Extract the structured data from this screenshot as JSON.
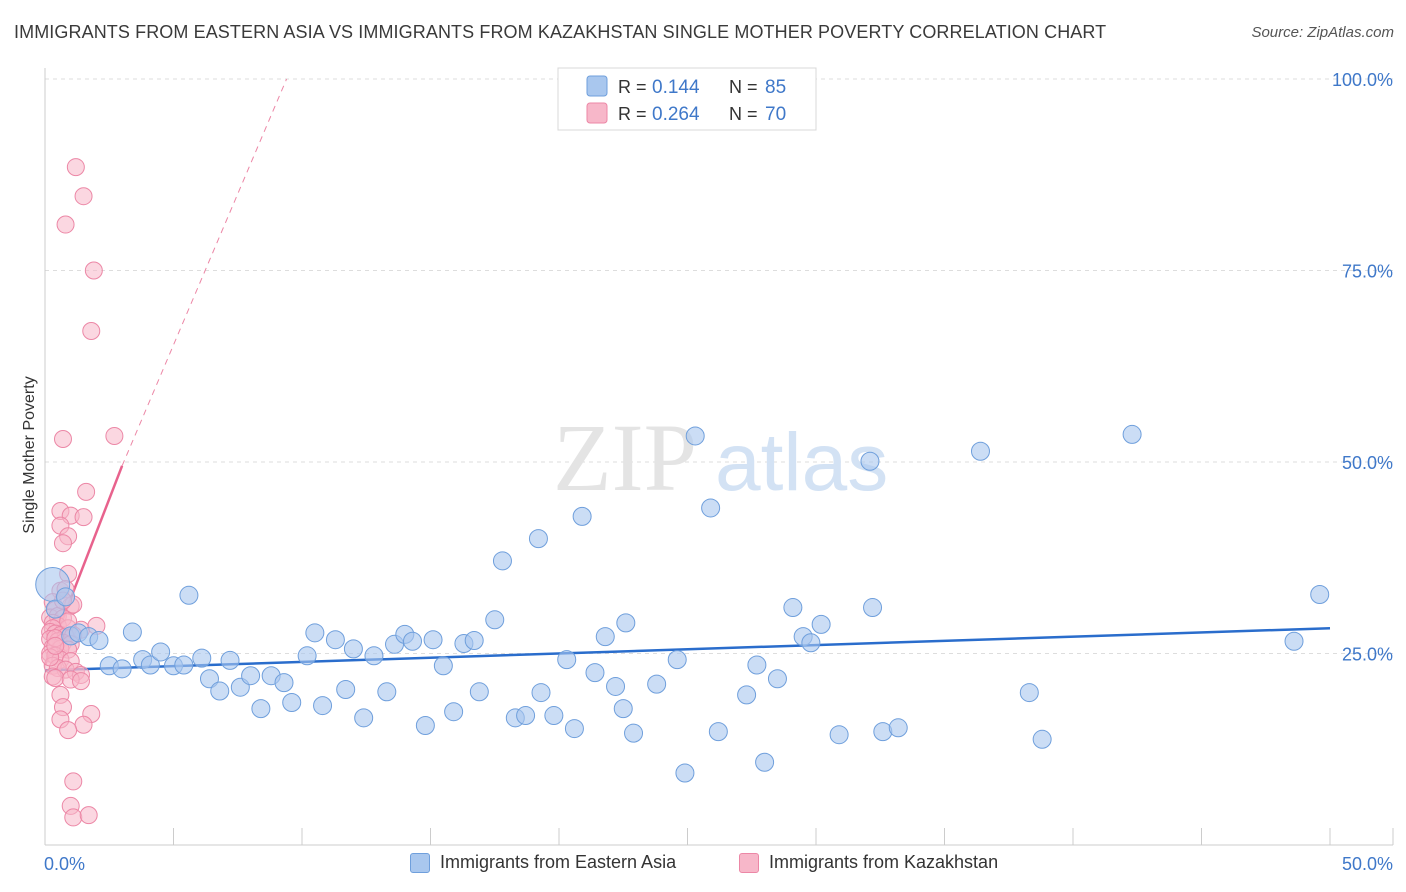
{
  "header": {
    "title": "IMMIGRANTS FROM EASTERN ASIA VS IMMIGRANTS FROM KAZAKHSTAN SINGLE MOTHER POVERTY CORRELATION CHART",
    "source": "Source: ZipAtlas.com"
  },
  "watermark": {
    "left": "ZIP",
    "right": "atlas"
  },
  "legend": {
    "rows": [
      {
        "r_label": "R = ",
        "r_value": "0.144",
        "n_label": "N = ",
        "n_value": "85"
      },
      {
        "r_label": "R = ",
        "r_value": "0.264",
        "n_label": "N = ",
        "n_value": "70"
      }
    ]
  },
  "bottom_legend": {
    "items": [
      {
        "label": "Immigrants from Eastern Asia"
      },
      {
        "label": "Immigrants from Kazakhstan"
      }
    ]
  },
  "colors": {
    "blue_fill": "#a9c7ee",
    "blue_stroke": "#6f9fdc",
    "blue_line": "#2a6dcc",
    "pink_fill": "#f7b7c9",
    "pink_stroke": "#ec87a6",
    "pink_line": "#e8628d",
    "axis_label": "#3f78c9",
    "grid": "#dddddd"
  },
  "chart_data": {
    "type": "scatter",
    "title": "IMMIGRANTS FROM EASTERN ASIA VS IMMIGRANTS FROM KAZAKHSTAN SINGLE MOTHER POVERTY CORRELATION CHART",
    "xlabel": "",
    "ylabel": "Single Mother Poverty",
    "xlim": [
      0,
      50
    ],
    "ylim": [
      0,
      100
    ],
    "x_tick_labels": [
      "0.0%",
      "50.0%"
    ],
    "y_tick_labels": [
      "25.0%",
      "50.0%",
      "75.0%",
      "100.0%"
    ],
    "y_ticks": [
      25,
      50,
      75,
      100
    ],
    "grid": "horizontal dashed",
    "legend_position": "top-center",
    "series": [
      {
        "name": "Immigrants from Eastern Asia",
        "color": "#6f9fdc",
        "r": 0.144,
        "n": 85,
        "trend": {
          "x": [
            0,
            50
          ],
          "y": [
            22.8,
            28.3
          ],
          "style": "solid"
        },
        "points": [
          [
            0.3,
            34.0
          ],
          [
            0.4,
            30.8
          ],
          [
            0.8,
            32.4
          ],
          [
            1.0,
            27.3
          ],
          [
            1.3,
            27.7
          ],
          [
            1.7,
            27.2
          ],
          [
            2.1,
            26.7
          ],
          [
            2.5,
            23.4
          ],
          [
            3.0,
            23.0
          ],
          [
            3.4,
            27.8
          ],
          [
            3.8,
            24.2
          ],
          [
            4.1,
            23.5
          ],
          [
            4.5,
            25.2
          ],
          [
            5.0,
            23.4
          ],
          [
            5.4,
            23.5
          ],
          [
            5.6,
            32.6
          ],
          [
            6.1,
            24.4
          ],
          [
            6.4,
            21.7
          ],
          [
            6.8,
            20.1
          ],
          [
            7.2,
            24.1
          ],
          [
            7.6,
            20.6
          ],
          [
            8.0,
            22.1
          ],
          [
            8.4,
            17.8
          ],
          [
            8.8,
            22.1
          ],
          [
            9.3,
            21.2
          ],
          [
            9.6,
            18.6
          ],
          [
            10.2,
            24.7
          ],
          [
            10.5,
            27.7
          ],
          [
            10.8,
            18.2
          ],
          [
            11.3,
            26.8
          ],
          [
            11.7,
            20.3
          ],
          [
            12.0,
            25.6
          ],
          [
            12.4,
            16.6
          ],
          [
            12.8,
            24.7
          ],
          [
            13.3,
            20.0
          ],
          [
            13.6,
            26.2
          ],
          [
            14.0,
            27.5
          ],
          [
            14.3,
            26.6
          ],
          [
            14.8,
            15.6
          ],
          [
            15.1,
            26.8
          ],
          [
            15.5,
            23.4
          ],
          [
            15.9,
            17.4
          ],
          [
            16.3,
            26.3
          ],
          [
            16.7,
            26.7
          ],
          [
            16.9,
            20.0
          ],
          [
            17.5,
            29.4
          ],
          [
            17.8,
            37.1
          ],
          [
            18.3,
            16.6
          ],
          [
            18.7,
            16.9
          ],
          [
            19.3,
            19.9
          ],
          [
            19.2,
            40.0
          ],
          [
            19.8,
            16.9
          ],
          [
            20.3,
            24.2
          ],
          [
            20.6,
            15.2
          ],
          [
            20.9,
            42.9
          ],
          [
            21.4,
            22.5
          ],
          [
            21.8,
            27.2
          ],
          [
            22.2,
            20.7
          ],
          [
            22.6,
            29.0
          ],
          [
            22.5,
            17.8
          ],
          [
            22.9,
            14.6
          ],
          [
            23.8,
            21.0
          ],
          [
            24.6,
            24.2
          ],
          [
            24.9,
            9.4
          ],
          [
            25.3,
            53.4
          ],
          [
            25.9,
            44.0
          ],
          [
            26.2,
            14.8
          ],
          [
            27.3,
            19.6
          ],
          [
            27.7,
            23.5
          ],
          [
            28.0,
            10.8
          ],
          [
            28.5,
            21.7
          ],
          [
            29.1,
            31.0
          ],
          [
            29.5,
            27.2
          ],
          [
            29.8,
            26.4
          ],
          [
            30.2,
            28.8
          ],
          [
            30.9,
            14.4
          ],
          [
            32.1,
            50.1
          ],
          [
            32.2,
            31.0
          ],
          [
            32.6,
            14.8
          ],
          [
            33.2,
            15.3
          ],
          [
            36.4,
            51.4
          ],
          [
            38.3,
            19.9
          ],
          [
            38.8,
            13.8
          ],
          [
            42.3,
            53.6
          ],
          [
            49.6,
            32.7
          ],
          [
            48.6,
            26.6
          ]
        ],
        "sizes_note": "one larger bubble at x=0.3"
      },
      {
        "name": "Immigrants from Kazakhstan",
        "color": "#ec87a6",
        "r": 0.264,
        "n": 70,
        "trend": {
          "x": [
            0,
            3.0
          ],
          "y": [
            23.5,
            49.5
          ],
          "style": "solid",
          "extended": {
            "x": [
              3.0,
              9.4
            ],
            "y": [
              49.5,
              100.0
            ],
            "style": "dashed"
          }
        },
        "points": [
          [
            1.2,
            88.5
          ],
          [
            1.5,
            84.7
          ],
          [
            0.8,
            81.0
          ],
          [
            1.9,
            75.0
          ],
          [
            1.8,
            67.1
          ],
          [
            2.7,
            53.4
          ],
          [
            0.7,
            53.0
          ],
          [
            1.6,
            46.1
          ],
          [
            0.6,
            43.6
          ],
          [
            1.0,
            43.0
          ],
          [
            1.5,
            42.8
          ],
          [
            0.6,
            41.7
          ],
          [
            0.9,
            40.3
          ],
          [
            0.7,
            39.4
          ],
          [
            0.9,
            35.4
          ],
          [
            0.6,
            33.2
          ],
          [
            0.8,
            33.4
          ],
          [
            0.3,
            31.7
          ],
          [
            1.0,
            31.2
          ],
          [
            1.1,
            31.4
          ],
          [
            0.4,
            30.7
          ],
          [
            0.2,
            29.7
          ],
          [
            0.5,
            29.9
          ],
          [
            0.7,
            29.6
          ],
          [
            0.3,
            29.0
          ],
          [
            0.5,
            28.6
          ],
          [
            0.3,
            28.3
          ],
          [
            0.9,
            28.3
          ],
          [
            1.4,
            28.1
          ],
          [
            2.0,
            28.6
          ],
          [
            0.2,
            27.8
          ],
          [
            0.4,
            27.6
          ],
          [
            0.6,
            27.4
          ],
          [
            0.8,
            27.2
          ],
          [
            1.1,
            27.4
          ],
          [
            0.2,
            26.9
          ],
          [
            0.5,
            26.6
          ],
          [
            0.7,
            26.4
          ],
          [
            1.0,
            26.2
          ],
          [
            0.3,
            25.8
          ],
          [
            0.6,
            25.6
          ],
          [
            0.9,
            25.5
          ],
          [
            0.2,
            25.0
          ],
          [
            0.4,
            24.7
          ],
          [
            0.6,
            24.2
          ],
          [
            1.0,
            24.0
          ],
          [
            0.3,
            23.4
          ],
          [
            0.5,
            23.1
          ],
          [
            0.8,
            22.9
          ],
          [
            1.2,
            22.6
          ],
          [
            1.4,
            22.2
          ],
          [
            0.3,
            22.0
          ],
          [
            0.4,
            21.8
          ],
          [
            1.0,
            21.6
          ],
          [
            1.4,
            21.4
          ],
          [
            0.6,
            19.6
          ],
          [
            0.7,
            18.0
          ],
          [
            1.8,
            17.1
          ],
          [
            0.6,
            16.4
          ],
          [
            1.5,
            15.7
          ],
          [
            0.9,
            15.0
          ],
          [
            1.1,
            8.3
          ],
          [
            1.0,
            5.1
          ],
          [
            1.1,
            3.6
          ],
          [
            1.7,
            3.9
          ],
          [
            0.4,
            27.0
          ],
          [
            0.2,
            24.5
          ],
          [
            0.7,
            31.9
          ],
          [
            0.9,
            29.2
          ],
          [
            0.4,
            26.0
          ]
        ]
      }
    ]
  }
}
